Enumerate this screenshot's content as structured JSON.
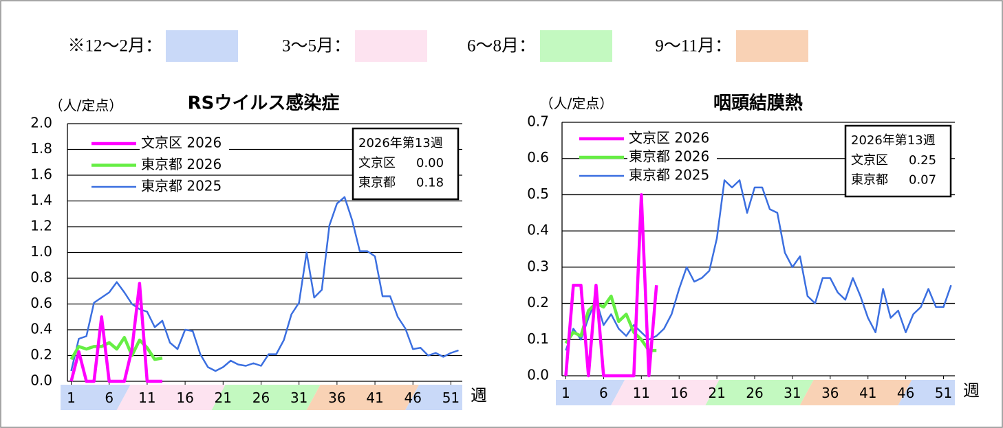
{
  "season_key": [
    {
      "label": "※12～2月：",
      "color": "#c9d9f8"
    },
    {
      "label": "3～5月：",
      "color": "#fde3f0"
    },
    {
      "label": "6～8月：",
      "color": "#c3f9c0"
    },
    {
      "label": "9～11月：",
      "color": "#f9d2b5"
    }
  ],
  "chart_data": [
    {
      "type": "line",
      "title": "RSウイルス感染症",
      "y_unit": "（人/定点）",
      "x_label": "週",
      "xlim": [
        0.5,
        52.5
      ],
      "xticks": [
        1,
        6,
        11,
        16,
        21,
        26,
        31,
        36,
        41,
        46,
        51
      ],
      "ylim": [
        0,
        2
      ],
      "yticks": [
        {
          "value": 0,
          "label": "0.0"
        },
        0.2,
        0.4,
        0.6,
        0.8,
        {
          "value": 1,
          "label": "1.0"
        },
        1.2,
        1.4,
        1.6,
        1.8,
        {
          "value": 2,
          "label": "2.0"
        }
      ],
      "grid": true,
      "legend": "upper left",
      "series": [
        {
          "name": "文京区 2026",
          "color": "#ff00ff",
          "x": [
            1,
            2,
            3,
            4,
            5,
            6,
            7,
            8,
            9,
            10,
            11,
            12,
            13
          ],
          "values": [
            0,
            0.23,
            0,
            0,
            0.5,
            0,
            0,
            0,
            0.25,
            0.76,
            0,
            0,
            0
          ]
        },
        {
          "name": "東京都 2026",
          "color": "#66ee44",
          "x": [
            1,
            2,
            3,
            4,
            5,
            6,
            7,
            8,
            9,
            10,
            11,
            12,
            13
          ],
          "values": [
            0.17,
            0.27,
            0.25,
            0.27,
            0.27,
            0.3,
            0.25,
            0.34,
            0.2,
            0.32,
            0.26,
            0.17,
            0.18
          ]
        },
        {
          "name": "東京都 2025",
          "color": "#3b6fe0",
          "x": [
            1,
            2,
            3,
            4,
            5,
            6,
            7,
            8,
            9,
            10,
            11,
            12,
            13,
            14,
            15,
            16,
            17,
            18,
            19,
            20,
            21,
            22,
            23,
            24,
            25,
            26,
            27,
            28,
            29,
            30,
            31,
            32,
            33,
            34,
            35,
            36,
            37,
            38,
            39,
            40,
            41,
            42,
            43,
            44,
            45,
            46,
            47,
            48,
            49,
            50,
            51,
            52
          ],
          "values": [
            0.08,
            0.33,
            0.35,
            0.61,
            0.65,
            0.69,
            0.77,
            0.69,
            0.6,
            0.56,
            0.54,
            0.42,
            0.47,
            0.3,
            0.25,
            0.4,
            0.39,
            0.21,
            0.11,
            0.08,
            0.11,
            0.16,
            0.13,
            0.12,
            0.14,
            0.12,
            0.21,
            0.21,
            0.32,
            0.52,
            0.61,
            1.0,
            0.65,
            0.71,
            1.21,
            1.38,
            1.43,
            1.25,
            1.01,
            1.01,
            0.97,
            0.66,
            0.66,
            0.5,
            0.41,
            0.25,
            0.26,
            0.2,
            0.22,
            0.19,
            0.22,
            0.24
          ]
        }
      ],
      "info_box": {
        "title": "2026年第13週",
        "rows": [
          {
            "label": "文京区",
            "value": "0.00"
          },
          {
            "label": "東京都",
            "value": "0.18"
          }
        ]
      }
    },
    {
      "type": "line",
      "title": "咽頭結膜熱",
      "y_unit": "（人/定点）",
      "x_label": "週",
      "xlim": [
        0.5,
        52.5
      ],
      "xticks": [
        1,
        6,
        11,
        16,
        21,
        26,
        31,
        36,
        41,
        46,
        51
      ],
      "ylim": [
        0,
        0.7
      ],
      "yticks": [
        {
          "value": 0,
          "label": "0.0"
        },
        0.1,
        0.2,
        0.3,
        0.4,
        0.5,
        0.6,
        0.7
      ],
      "grid": true,
      "legend": "upper left",
      "series": [
        {
          "name": "文京区 2026",
          "color": "#ff00ff",
          "x": [
            1,
            2,
            3,
            4,
            5,
            6,
            7,
            8,
            9,
            10,
            11,
            12,
            13
          ],
          "values": [
            0,
            0.25,
            0.25,
            0,
            0.25,
            0,
            0,
            0,
            0,
            0,
            0.5,
            0,
            0.25
          ]
        },
        {
          "name": "東京都 2026",
          "color": "#66ee44",
          "x": [
            1,
            2,
            3,
            4,
            5,
            6,
            7,
            8,
            9,
            10,
            11,
            12,
            13
          ],
          "values": [
            0.09,
            0.12,
            0.11,
            0.18,
            0.2,
            0.19,
            0.22,
            0.15,
            0.17,
            0.12,
            0.1,
            0.07,
            0.07
          ]
        },
        {
          "name": "東京都 2025",
          "color": "#3b6fe0",
          "x": [
            1,
            2,
            3,
            4,
            5,
            6,
            7,
            8,
            9,
            10,
            11,
            12,
            13,
            14,
            15,
            16,
            17,
            18,
            19,
            20,
            21,
            22,
            23,
            24,
            25,
            26,
            27,
            28,
            29,
            30,
            31,
            32,
            33,
            34,
            35,
            36,
            37,
            38,
            39,
            40,
            41,
            42,
            43,
            44,
            45,
            46,
            47,
            48,
            49,
            50,
            51,
            52
          ],
          "values": [
            0.07,
            0.13,
            0.1,
            0.16,
            0.21,
            0.14,
            0.17,
            0.13,
            0.11,
            0.14,
            0.12,
            0.1,
            0.11,
            0.13,
            0.17,
            0.24,
            0.3,
            0.26,
            0.27,
            0.29,
            0.38,
            0.54,
            0.52,
            0.54,
            0.45,
            0.52,
            0.52,
            0.46,
            0.45,
            0.34,
            0.3,
            0.33,
            0.22,
            0.2,
            0.27,
            0.27,
            0.23,
            0.21,
            0.27,
            0.22,
            0.16,
            0.12,
            0.24,
            0.16,
            0.18,
            0.12,
            0.17,
            0.19,
            0.24,
            0.19,
            0.19,
            0.25
          ]
        }
      ],
      "info_box": {
        "title": "2026年第13週",
        "rows": [
          {
            "label": "文京区",
            "value": "0.25"
          },
          {
            "label": "東京都",
            "value": "0.07"
          }
        ]
      }
    }
  ]
}
